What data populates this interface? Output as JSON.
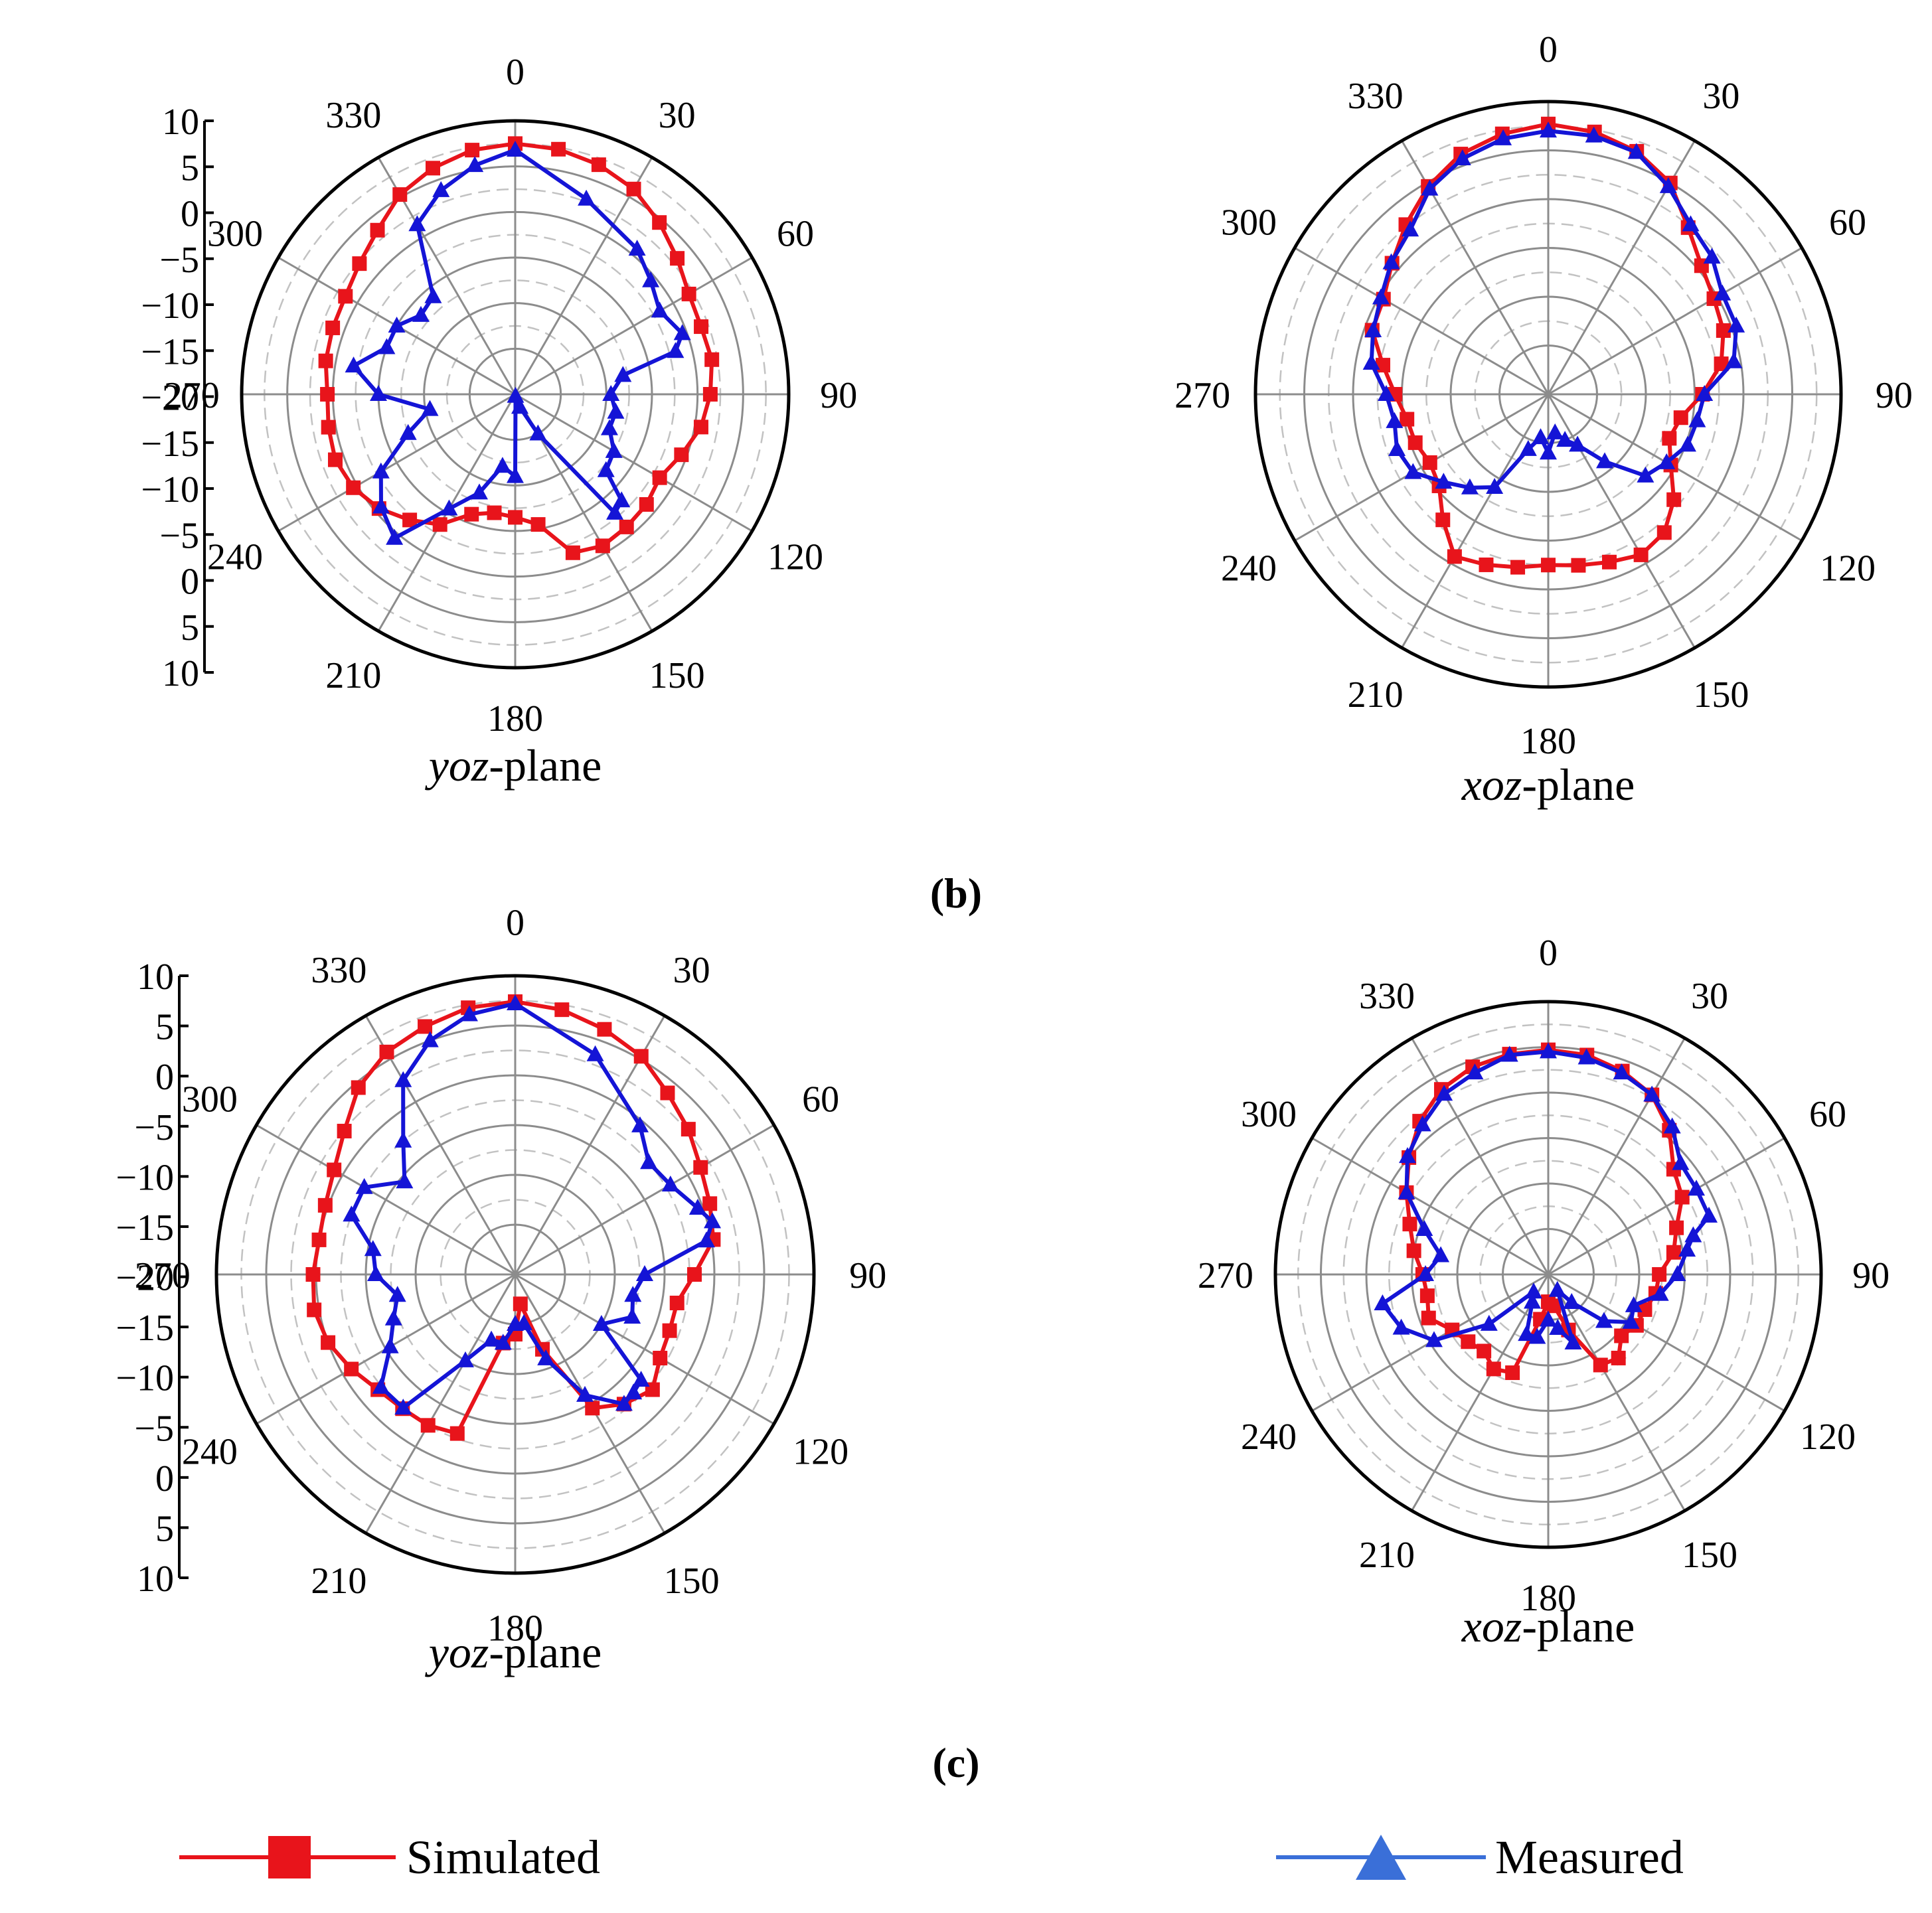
{
  "figure": {
    "caption_b": "(b)",
    "caption_c": "(c)",
    "legend": {
      "simulated": "Simulated",
      "measured": "Measured"
    }
  },
  "style": {
    "simulated_color": "#e8141b",
    "measured_color": "#1414d6",
    "legend_measured_color": "#3a6fd8"
  },
  "chart_data": [
    {
      "type": "polar",
      "id": "b-yoz",
      "panel": "b",
      "title_italic": "yoz",
      "title_rest": "-plane",
      "angle_labels": [
        "0",
        "30",
        "60",
        "90",
        "120",
        "150",
        "180",
        "210",
        "240",
        "270",
        "300",
        "330"
      ],
      "radial_tick_labels": [
        "10",
        "5",
        "0",
        "-5",
        "-10",
        "-15",
        "-20",
        "-15",
        "-10",
        "-5",
        "0",
        "5",
        "10"
      ],
      "radial_range": [
        -20,
        10
      ],
      "series": [
        {
          "name": "Simulated",
          "marker": "square",
          "angles": [
            0,
            10,
            20,
            30,
            40,
            50,
            60,
            70,
            80,
            90,
            100,
            110,
            120,
            130,
            140,
            150,
            160,
            170,
            180,
            190,
            200,
            210,
            220,
            230,
            240,
            250,
            260,
            270,
            280,
            290,
            300,
            310,
            320,
            330,
            340,
            350
          ],
          "values": [
            7.5,
            7.3,
            6.8,
            6.0,
            4.6,
            3.2,
            2.0,
            1.7,
            1.9,
            1.4,
            0.7,
            -0.6,
            -1.7,
            -1.2,
            -1.0,
            -0.8,
            -1.5,
            -5.5,
            -6.5,
            -6.8,
            -6.0,
            -3.5,
            -2.0,
            -0.5,
            0.5,
            1.0,
            0.8,
            0.6,
            1.1,
            1.3,
            1.5,
            2.3,
            3.5,
            5.3,
            6.4,
            7.2
          ]
        },
        {
          "name": "Measured",
          "marker": "triangle",
          "angles": [
            0,
            20,
            40,
            50,
            60,
            70,
            75,
            80,
            90,
            100,
            110,
            120,
            130,
            135,
            140,
            150,
            160,
            170,
            180,
            190,
            200,
            210,
            220,
            230,
            240,
            250,
            260,
            270,
            280,
            290,
            300,
            310,
            320,
            330,
            340,
            350
          ],
          "values": [
            6.8,
            2.8,
            0.8,
            -0.6,
            -1.7,
            -0.5,
            -1.8,
            -8.0,
            -9.5,
            -8.8,
            -9.0,
            -7.5,
            -7.0,
            -3.5,
            -3.0,
            -15.0,
            -18.5,
            -19.8,
            -11.0,
            -12.0,
            -8.5,
            -5.5,
            0.6,
            -0.8,
            -3.0,
            -7.5,
            -10.5,
            -5.0,
            -2.0,
            -5.0,
            -5.0,
            -6.5,
            -6.0,
            1.5,
            3.8,
            5.5
          ]
        }
      ]
    },
    {
      "type": "polar",
      "id": "b-xoz",
      "panel": "b",
      "title_italic": "xoz",
      "title_rest": "-plane",
      "angle_labels": [
        "0",
        "30",
        "60",
        "90",
        "120",
        "150",
        "180",
        "210",
        "240",
        "270",
        "300",
        "330"
      ],
      "radial_range": [
        -20,
        10
      ],
      "series": [
        {
          "name": "Simulated",
          "marker": "square",
          "angles": [
            0,
            10,
            20,
            30,
            40,
            50,
            60,
            70,
            80,
            90,
            100,
            110,
            120,
            130,
            140,
            150,
            160,
            170,
            180,
            190,
            200,
            210,
            220,
            230,
            240,
            250,
            260,
            270,
            280,
            290,
            300,
            310,
            320,
            330,
            340,
            350
          ],
          "values": [
            7.7,
            7.3,
            6.5,
            5.0,
            2.3,
            0.5,
            -0.4,
            -0.9,
            -2.0,
            -4.2,
            -6.2,
            -6.8,
            -5.5,
            -3.2,
            -1.5,
            -1.0,
            -1.7,
            -2.2,
            -2.5,
            -2.0,
            -1.4,
            -0.8,
            -3.2,
            -5.4,
            -6.0,
            -5.5,
            -5.3,
            -4.3,
            -2.8,
            -0.8,
            -0.5,
            0.9,
            2.7,
            4.6,
            6.2,
            7.1
          ]
        },
        {
          "name": "Measured",
          "marker": "triangle",
          "angles": [
            0,
            10,
            20,
            30,
            40,
            50,
            60,
            70,
            80,
            90,
            100,
            110,
            120,
            130,
            140,
            150,
            160,
            170,
            180,
            190,
            200,
            210,
            220,
            230,
            240,
            250,
            260,
            270,
            280,
            290,
            300,
            310,
            320,
            330,
            340,
            350
          ],
          "values": [
            7.0,
            6.9,
            6.4,
            4.6,
            2.7,
            1.9,
            0.6,
            0.5,
            -0.7,
            -4.0,
            -4.5,
            -4.8,
            -6.0,
            -7.0,
            -11.0,
            -14.0,
            -15.0,
            -16.0,
            -14.0,
            -15.5,
            -14.0,
            -9.0,
            -7.5,
            -6.0,
            -4.0,
            -3.5,
            -4.0,
            -3.4,
            -1.6,
            -0.9,
            -0.2,
            1.0,
            2.0,
            4.3,
            5.7,
            6.6
          ]
        }
      ]
    },
    {
      "type": "polar",
      "id": "c-yoz",
      "panel": "c",
      "title_italic": "yoz",
      "title_rest": "-plane",
      "angle_labels": [
        "0",
        "30",
        "60",
        "90",
        "120",
        "150",
        "180",
        "210",
        "240",
        "270",
        "300",
        "330"
      ],
      "radial_tick_labels": [
        "10",
        "5",
        "0",
        "-5",
        "-10",
        "-15",
        "-20",
        "-15",
        "-10",
        "-5",
        "0",
        "5",
        "10"
      ],
      "radial_range": [
        -20,
        10
      ],
      "series": [
        {
          "name": "Simulated",
          "marker": "square",
          "angles": [
            0,
            10,
            20,
            30,
            40,
            50,
            60,
            70,
            80,
            90,
            100,
            110,
            120,
            130,
            140,
            150,
            160,
            170,
            180,
            190,
            200,
            210,
            220,
            230,
            240,
            250,
            260,
            270,
            280,
            290,
            300,
            310,
            320,
            330,
            340,
            350
          ],
          "values": [
            7.4,
            7.0,
            6.2,
            5.3,
            3.8,
            2.7,
            1.5,
            0.8,
            0.2,
            -2.0,
            -3.5,
            -3.5,
            -3.2,
            -2.0,
            -3.0,
            -4.5,
            -12.0,
            -17.0,
            -14.0,
            -13.0,
            -3.0,
            -2.5,
            -2.4,
            -2.0,
            -1.0,
            0.0,
            0.5,
            0.3,
            0.0,
            0.3,
            1.0,
            2.4,
            4.5,
            5.8,
            6.5,
            7.2
          ]
        },
        {
          "name": "Measured",
          "marker": "triangle",
          "angles": [
            0,
            20,
            40,
            50,
            60,
            70,
            75,
            80,
            90,
            100,
            110,
            120,
            130,
            135,
            140,
            150,
            160,
            170,
            180,
            190,
            200,
            210,
            220,
            230,
            240,
            250,
            260,
            270,
            280,
            290,
            300,
            310,
            320,
            330,
            340,
            350
          ],
          "values": [
            7.2,
            3.5,
            -0.5,
            -2.5,
            -2.0,
            -0.5,
            0.5,
            -0.5,
            -7.0,
            -8.0,
            -7.5,
            -10.0,
            -3.5,
            -3.2,
            -3.0,
            -6.0,
            -11.0,
            -15.0,
            -15.0,
            -13.0,
            -13.0,
            -10.0,
            -2.5,
            -2.4,
            -5.5,
            -7.0,
            -8.0,
            -6.0,
            -5.5,
            -2.5,
            -2.5,
            -5.5,
            -2.5,
            2.5,
            5.0,
            6.5
          ]
        }
      ]
    },
    {
      "type": "polar",
      "id": "c-xoz",
      "panel": "c",
      "title_italic": "xoz",
      "title_rest": "-plane",
      "angle_labels": [
        "0",
        "30",
        "60",
        "90",
        "120",
        "150",
        "180",
        "210",
        "240",
        "270",
        "300",
        "330"
      ],
      "radial_range": [
        -20,
        10
      ],
      "series": [
        {
          "name": "Simulated",
          "marker": "square",
          "angles": [
            0,
            10,
            20,
            30,
            40,
            50,
            60,
            70,
            80,
            90,
            100,
            110,
            120,
            130,
            140,
            150,
            160,
            170,
            180,
            190,
            200,
            210,
            220,
            230,
            240,
            250,
            260,
            270,
            280,
            290,
            300,
            310,
            320,
            330,
            340,
            350
          ],
          "values": [
            4.7,
            4.5,
            3.8,
            2.8,
            0.7,
            -2.0,
            -3.0,
            -5.0,
            -6.0,
            -7.8,
            -8.0,
            -8.7,
            -8.8,
            -9.5,
            -8.0,
            -8.5,
            -13.5,
            -16.5,
            -17.0,
            -15.0,
            -8.5,
            -8.0,
            -9.0,
            -8.5,
            -7.8,
            -6.0,
            -6.5,
            -6.2,
            -5.0,
            -3.8,
            -2.0,
            0.0,
            2.0,
            3.5,
            4.3,
            4.6
          ]
        },
        {
          "name": "Measured",
          "marker": "triangle",
          "angles": [
            0,
            10,
            20,
            30,
            40,
            50,
            60,
            70,
            75,
            80,
            90,
            100,
            110,
            120,
            130,
            140,
            150,
            160,
            170,
            180,
            190,
            200,
            210,
            220,
            230,
            240,
            250,
            260,
            270,
            280,
            290,
            300,
            310,
            320,
            330,
            340,
            350
          ],
          "values": [
            4.5,
            4.2,
            3.6,
            2.8,
            1.2,
            -1.0,
            -1.2,
            -1.2,
            -3.5,
            -4.5,
            -5.8,
            -7.5,
            -10.0,
            -9.5,
            -12.0,
            -16.0,
            -18.0,
            -12.0,
            -14.0,
            -15.0,
            -13.0,
            -13.0,
            -16.5,
            -17.5,
            -11.5,
            -5.5,
            -2.8,
            -1.5,
            -6.5,
            -8.0,
            -5.5,
            -2.0,
            0.2,
            1.5,
            2.9,
            3.6,
            4.5
          ]
        }
      ]
    }
  ]
}
